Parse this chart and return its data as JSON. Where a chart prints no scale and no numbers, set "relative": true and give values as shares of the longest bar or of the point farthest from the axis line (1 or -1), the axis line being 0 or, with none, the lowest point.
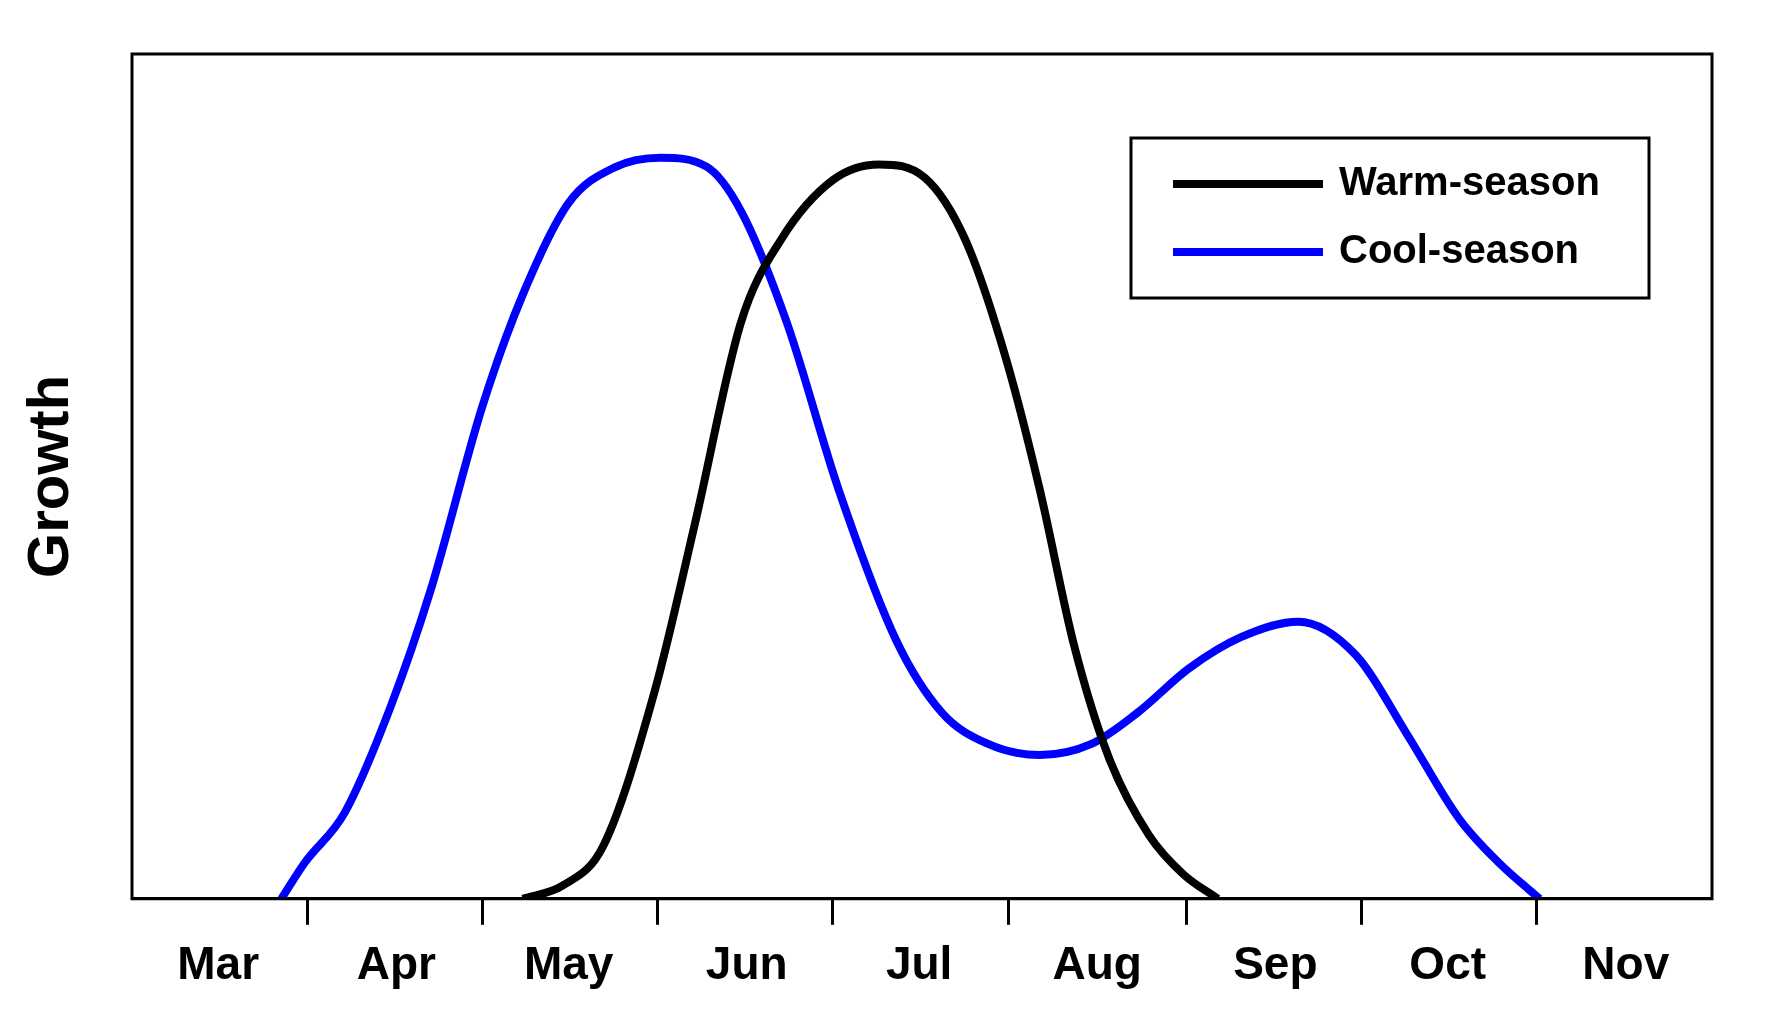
{
  "chart_data": {
    "type": "line",
    "ylabel": "Growth",
    "relative": true,
    "legend": "top right",
    "marker": "none",
    "line_style": "solid",
    "xlim": [
      "--03-01",
      "--12-01"
    ],
    "xticks": [
      {
        "value": "--03-16",
        "label": "Mar"
      },
      {
        "value": "--04-16",
        "label": "Apr"
      },
      {
        "value": "--05-16",
        "label": "May"
      },
      {
        "value": "--06-16",
        "label": "Jun"
      },
      {
        "value": "--07-16",
        "label": "Jul"
      },
      {
        "value": "--08-16",
        "label": "Aug"
      },
      {
        "value": "--09-16",
        "label": "Sep"
      },
      {
        "value": "--10-16",
        "label": "Oct"
      },
      {
        "value": "--11-16",
        "label": "Nov"
      }
    ],
    "series": [
      {
        "name": "Warm-season",
        "color": "#000000",
        "x": [
          "--05-08",
          "--05-15",
          "--05-22",
          "--05-31",
          "--06-07",
          "--06-15",
          "--06-22",
          "--07-01",
          "--07-09",
          "--07-17",
          "--07-24",
          "--07-31",
          "--08-06",
          "--08-12",
          "--08-18",
          "--08-25",
          "--08-31",
          "--09-06"
        ],
        "values": [
          0,
          0.018,
          0.071,
          0.281,
          0.507,
          0.778,
          0.89,
          0.97,
          0.991,
          0.973,
          0.89,
          0.732,
          0.552,
          0.341,
          0.191,
          0.086,
          0.033,
          0
        ]
      },
      {
        "name": "Cool-season",
        "color": "#0000ff",
        "x": [
          "--03-27",
          "--03-31",
          "--04-07",
          "--04-15",
          "--04-22",
          "--05-01",
          "--05-08",
          "--05-16",
          "--05-24",
          "--06-01",
          "--06-09",
          "--06-15",
          "--06-23",
          "--07-02",
          "--07-12",
          "--07-20",
          "--07-28",
          "--08-06",
          "--08-15",
          "--08-23",
          "--09-01",
          "--09-10",
          "--09-20",
          "--09-30",
          "--10-09",
          "--10-18",
          "--10-25",
          "--11-01"
        ],
        "values": [
          0,
          0.048,
          0.116,
          0.259,
          0.417,
          0.665,
          0.815,
          0.939,
          0.987,
          1,
          0.988,
          0.928,
          0.777,
          0.552,
          0.349,
          0.251,
          0.209,
          0.194,
          0.209,
          0.251,
          0.311,
          0.353,
          0.374,
          0.329,
          0.221,
          0.108,
          0.048,
          0
        ]
      }
    ]
  }
}
